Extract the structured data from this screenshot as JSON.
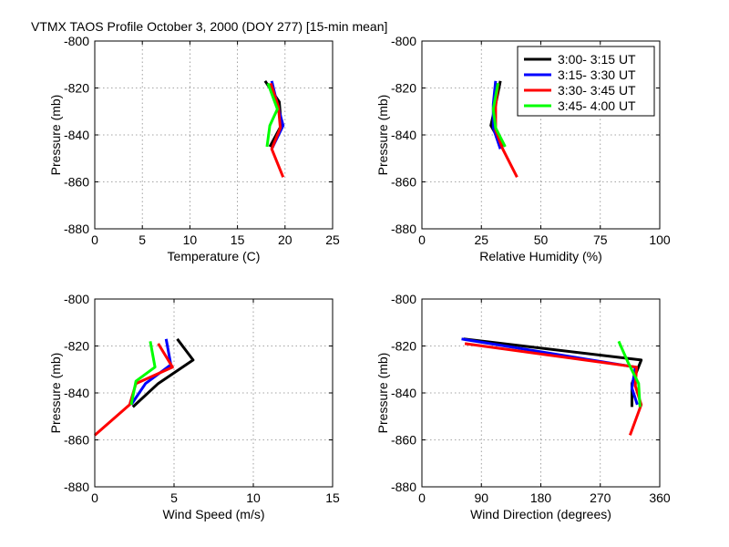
{
  "figure_title": "VTMX TAOS Profile   October 3, 2000 (DOY 277) [15-min mean]",
  "legend_labels": [
    "3:00- 3:15 UT",
    "3:15- 3:30 UT",
    "3:30- 3:45 UT",
    "3:45- 4:00 UT"
  ],
  "series_colors": [
    "#000000",
    "#0000ff",
    "#ff0000",
    "#00ff00"
  ],
  "chart_data": [
    {
      "type": "line",
      "title": "",
      "xlabel": "Temperature (C)",
      "ylabel": "Pressure (mb)",
      "xlim": [
        0,
        25
      ],
      "ylim": [
        -880,
        -800
      ],
      "xticks": [
        0,
        5,
        10,
        15,
        20,
        25
      ],
      "yticks": [
        -800,
        -820,
        -840,
        -860,
        -880
      ],
      "grid": true,
      "legend": false,
      "series": [
        {
          "name": "3:00- 3:15 UT",
          "x": [
            17.9,
            19.4,
            19.6,
            18.4
          ],
          "y": [
            -817,
            -826,
            -836,
            -845
          ]
        },
        {
          "name": "3:15- 3:30 UT",
          "x": [
            18.6,
            19.2,
            19.8,
            18.6
          ],
          "y": [
            -817,
            -827,
            -836,
            -846
          ]
        },
        {
          "name": "3:30- 3:45 UT",
          "x": [
            18.5,
            19.3,
            19.5,
            18.6,
            19.8
          ],
          "y": [
            -818,
            -828,
            -837,
            -846,
            -858
          ]
        },
        {
          "name": "3:45- 4:00 UT",
          "x": [
            18.2,
            19.2,
            18.4,
            18.1
          ],
          "y": [
            -818,
            -829,
            -836,
            -845
          ]
        }
      ]
    },
    {
      "type": "line",
      "title": "",
      "xlabel": "Relative Humidity (%)",
      "ylabel": "Pressure (mb)",
      "xlim": [
        0,
        100
      ],
      "ylim": [
        -880,
        -800
      ],
      "xticks": [
        0,
        25,
        50,
        75,
        100
      ],
      "yticks": [
        -800,
        -820,
        -840,
        -860,
        -880
      ],
      "grid": true,
      "legend": true,
      "legend_position": "top-right",
      "series": [
        {
          "name": "3:00- 3:15 UT",
          "x": [
            33,
            31,
            29,
            34
          ],
          "y": [
            -817,
            -827,
            -836,
            -845
          ]
        },
        {
          "name": "3:15- 3:30 UT",
          "x": [
            31,
            30,
            30,
            33
          ],
          "y": [
            -817,
            -827,
            -837,
            -846
          ]
        },
        {
          "name": "3:30- 3:45 UT",
          "x": [
            32,
            31,
            31,
            34,
            40
          ],
          "y": [
            -818,
            -828,
            -838,
            -846,
            -858
          ]
        },
        {
          "name": "3:45- 4:00 UT",
          "x": [
            32,
            30,
            31,
            35
          ],
          "y": [
            -818,
            -829,
            -837,
            -845
          ]
        }
      ]
    },
    {
      "type": "line",
      "title": "",
      "xlabel": "Wind Speed (m/s)",
      "ylabel": "Pressure (mb)",
      "xlim": [
        0,
        15
      ],
      "ylim": [
        -880,
        -800
      ],
      "xticks": [
        0,
        5,
        10,
        15
      ],
      "yticks": [
        -800,
        -820,
        -840,
        -860,
        -880
      ],
      "grid": true,
      "legend": false,
      "series": [
        {
          "name": "3:00- 3:15 UT",
          "x": [
            5.2,
            6.2,
            4.0,
            2.4
          ],
          "y": [
            -817,
            -826,
            -836,
            -846
          ]
        },
        {
          "name": "3:15- 3:30 UT",
          "x": [
            4.5,
            4.8,
            3.2,
            2.3
          ],
          "y": [
            -817,
            -828,
            -836,
            -845
          ]
        },
        {
          "name": "3:30- 3:45 UT",
          "x": [
            4.0,
            4.9,
            2.6,
            2.2,
            0.0
          ],
          "y": [
            -819,
            -829,
            -836,
            -845,
            -858
          ]
        },
        {
          "name": "3:45- 4:00 UT",
          "x": [
            3.5,
            3.8,
            2.6,
            2.3
          ],
          "y": [
            -818,
            -829,
            -835,
            -845
          ]
        }
      ]
    },
    {
      "type": "line",
      "title": "",
      "xlabel": "Wind Direction (degrees)",
      "ylabel": "Pressure (mb)",
      "xlim": [
        0,
        360
      ],
      "ylim": [
        -880,
        -800
      ],
      "xticks": [
        0,
        90,
        180,
        270,
        360
      ],
      "yticks": [
        -800,
        -820,
        -840,
        -860,
        -880
      ],
      "grid": true,
      "legend": false,
      "series": [
        {
          "name": "3:00- 3:15 UT",
          "x": [
            63,
            332,
            318,
            318
          ],
          "y": [
            -817,
            -826,
            -836,
            -846
          ]
        },
        {
          "name": "3:15- 3:30 UT",
          "x": [
            60,
            323,
            318,
            326
          ],
          "y": [
            -817,
            -829,
            -838,
            -845
          ]
        },
        {
          "name": "3:30- 3:45 UT",
          "x": [
            65,
            325,
            323,
            332,
            315
          ],
          "y": [
            -819,
            -829,
            -837,
            -845,
            -858
          ]
        },
        {
          "name": "3:45- 4:00 UT",
          "x": [
            298,
            312,
            328,
            330
          ],
          "y": [
            -818,
            -827,
            -836,
            -846
          ]
        }
      ]
    }
  ]
}
